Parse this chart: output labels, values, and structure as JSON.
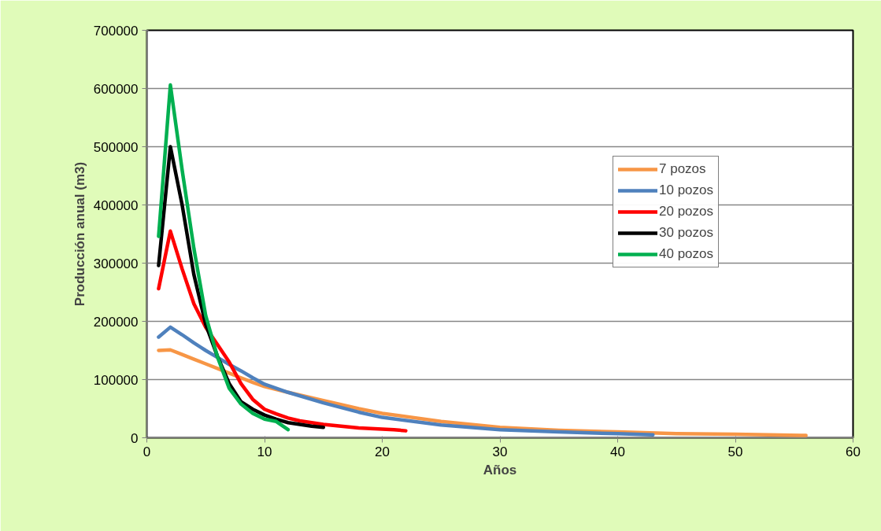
{
  "chart_data": {
    "type": "line",
    "xlabel": "Años",
    "ylabel": "Producción anual (m3)",
    "xlim": [
      0,
      60
    ],
    "xticks": [
      0,
      10,
      20,
      30,
      40,
      50,
      60
    ],
    "ylim": [
      0,
      700000
    ],
    "yticks": [
      0,
      100000,
      200000,
      300000,
      400000,
      500000,
      600000,
      700000
    ],
    "grid": "y",
    "legend": "top right",
    "marker": "none",
    "line_style": "solid",
    "series": [
      {
        "name": "7 pozos",
        "color": "#f79646",
        "x": [
          1,
          2,
          3,
          4,
          5,
          6,
          7,
          8,
          9,
          10,
          12,
          15,
          18,
          20,
          25,
          30,
          35,
          40,
          45,
          50,
          56
        ],
        "values": [
          150000,
          151000,
          143000,
          135000,
          127000,
          119000,
          111000,
          103000,
          95000,
          88000,
          78000,
          64000,
          50000,
          42000,
          28000,
          18000,
          13000,
          10000,
          7000,
          6000,
          4000
        ]
      },
      {
        "name": "10 pozos",
        "color": "#4f81bd",
        "x": [
          1,
          2,
          3,
          4,
          5,
          6,
          7,
          8,
          9,
          10,
          12,
          15,
          18,
          20,
          25,
          30,
          35,
          40,
          43
        ],
        "values": [
          173000,
          190000,
          177000,
          163000,
          150000,
          138000,
          126000,
          115000,
          103000,
          92000,
          78000,
          60000,
          44000,
          35000,
          22000,
          14000,
          10000,
          7000,
          5000
        ]
      },
      {
        "name": "20 pozos",
        "color": "#ff0000",
        "x": [
          1,
          2,
          3,
          4,
          5,
          6,
          7,
          8,
          9,
          10,
          11,
          12,
          13,
          14,
          15,
          16,
          17,
          18,
          19,
          20,
          21,
          22
        ],
        "values": [
          256000,
          355000,
          290000,
          230000,
          190000,
          160000,
          130000,
          93000,
          66000,
          49000,
          41000,
          34000,
          29000,
          26000,
          23000,
          21000,
          19000,
          17000,
          16000,
          15000,
          14000,
          12000
        ]
      },
      {
        "name": "30 pozos",
        "color": "#000000",
        "x": [
          1,
          2,
          3,
          4,
          5,
          6,
          7,
          8,
          9,
          10,
          11,
          12,
          13,
          14,
          15
        ],
        "values": [
          296000,
          500000,
          400000,
          280000,
          195000,
          140000,
          93000,
          62000,
          49000,
          39000,
          32000,
          26000,
          23000,
          20000,
          18000
        ]
      },
      {
        "name": "40 pozos",
        "color": "#00b050",
        "x": [
          1,
          2,
          3,
          4,
          5,
          6,
          7,
          8,
          9,
          10,
          11,
          12
        ],
        "values": [
          346000,
          606000,
          460000,
          325000,
          210000,
          139000,
          85000,
          58000,
          42000,
          32000,
          28000,
          14000
        ]
      }
    ]
  }
}
